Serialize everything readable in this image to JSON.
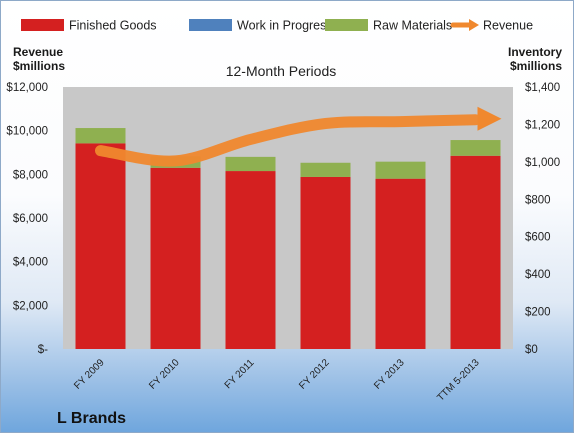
{
  "chart_data": {
    "type": "bar",
    "stacked": true,
    "subtitle": "12-Month Periods",
    "company": "L Brands",
    "categories": [
      "FY 2009",
      "FY 2010",
      "FY 2011",
      "FY 2012",
      "FY 2013",
      "TTM 5-2013"
    ],
    "left_axis": {
      "title_lines": [
        "Revenue",
        "$millions"
      ],
      "ylim": [
        0,
        12000
      ],
      "ticks": [
        0,
        2000,
        4000,
        6000,
        8000,
        10000,
        12000
      ],
      "tick_labels": [
        "$-",
        "$2,000",
        "$4,000",
        "$6,000",
        "$8,000",
        "$10,000",
        "$12,000"
      ]
    },
    "right_axis": {
      "title_lines": [
        "Inventory",
        "$millions"
      ],
      "ylim": [
        0,
        1400
      ],
      "ticks": [
        0,
        200,
        400,
        600,
        800,
        1000,
        1200,
        1400
      ],
      "tick_labels": [
        "$0",
        "$200",
        "$400",
        "$600",
        "$800",
        "$1,000",
        "$1,200",
        "$1,400"
      ]
    },
    "series": [
      {
        "name": "Finished Goods",
        "kind": "bar",
        "axis": "left",
        "color": "#d42020",
        "values": [
          9420,
          8300,
          8150,
          7880,
          7800,
          8850
        ]
      },
      {
        "name": "Work in Progress",
        "kind": "bar",
        "axis": "left",
        "color": "#4f81bd",
        "values": [
          0,
          0,
          0,
          0,
          0,
          0
        ]
      },
      {
        "name": "Raw Materials",
        "kind": "bar",
        "axis": "left",
        "color": "#8fb050",
        "values": [
          700,
          520,
          650,
          650,
          780,
          720
        ]
      },
      {
        "name": "Revenue",
        "kind": "line",
        "axis": "right",
        "color": "#f0882e",
        "values": [
          1060,
          1005,
          1120,
          1205,
          1215,
          1225
        ]
      }
    ],
    "grid": false,
    "legend_position": "top"
  }
}
